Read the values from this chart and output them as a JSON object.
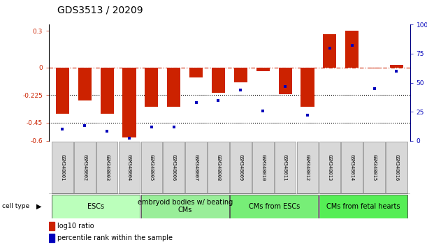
{
  "title": "GDS3513 / 20209",
  "samples": [
    "GSM348001",
    "GSM348002",
    "GSM348003",
    "GSM348004",
    "GSM348005",
    "GSM348006",
    "GSM348007",
    "GSM348008",
    "GSM348009",
    "GSM348010",
    "GSM348011",
    "GSM348012",
    "GSM348013",
    "GSM348014",
    "GSM348015",
    "GSM348016"
  ],
  "log10_ratio": [
    -0.38,
    -0.27,
    -0.38,
    -0.57,
    -0.32,
    -0.32,
    -0.08,
    -0.21,
    -0.12,
    -0.03,
    -0.22,
    -0.32,
    0.27,
    0.3,
    -0.01,
    0.02
  ],
  "percentile_rank": [
    10,
    13,
    8,
    2,
    12,
    12,
    33,
    35,
    44,
    26,
    47,
    22,
    80,
    82,
    45,
    60
  ],
  "ylim_left": [
    -0.6,
    0.35
  ],
  "ylim_right": [
    0,
    100
  ],
  "cell_type_groups": [
    {
      "label": "ESCs",
      "start": 0,
      "end": 3,
      "color": "#bbffbb"
    },
    {
      "label": "embryoid bodies w/ beating\nCMs",
      "start": 4,
      "end": 7,
      "color": "#99ee99"
    },
    {
      "label": "CMs from ESCs",
      "start": 8,
      "end": 11,
      "color": "#77ee77"
    },
    {
      "label": "CMs from fetal hearts",
      "start": 12,
      "end": 15,
      "color": "#55ee55"
    }
  ],
  "bar_color": "#cc2200",
  "dot_color": "#0000bb",
  "zero_line_color": "#cc2200",
  "dotted_line_color": "#000000",
  "title_fontsize": 10,
  "tick_fontsize": 6.5,
  "sample_fontsize": 5.0,
  "group_fontsize": 7,
  "legend_fontsize": 7
}
